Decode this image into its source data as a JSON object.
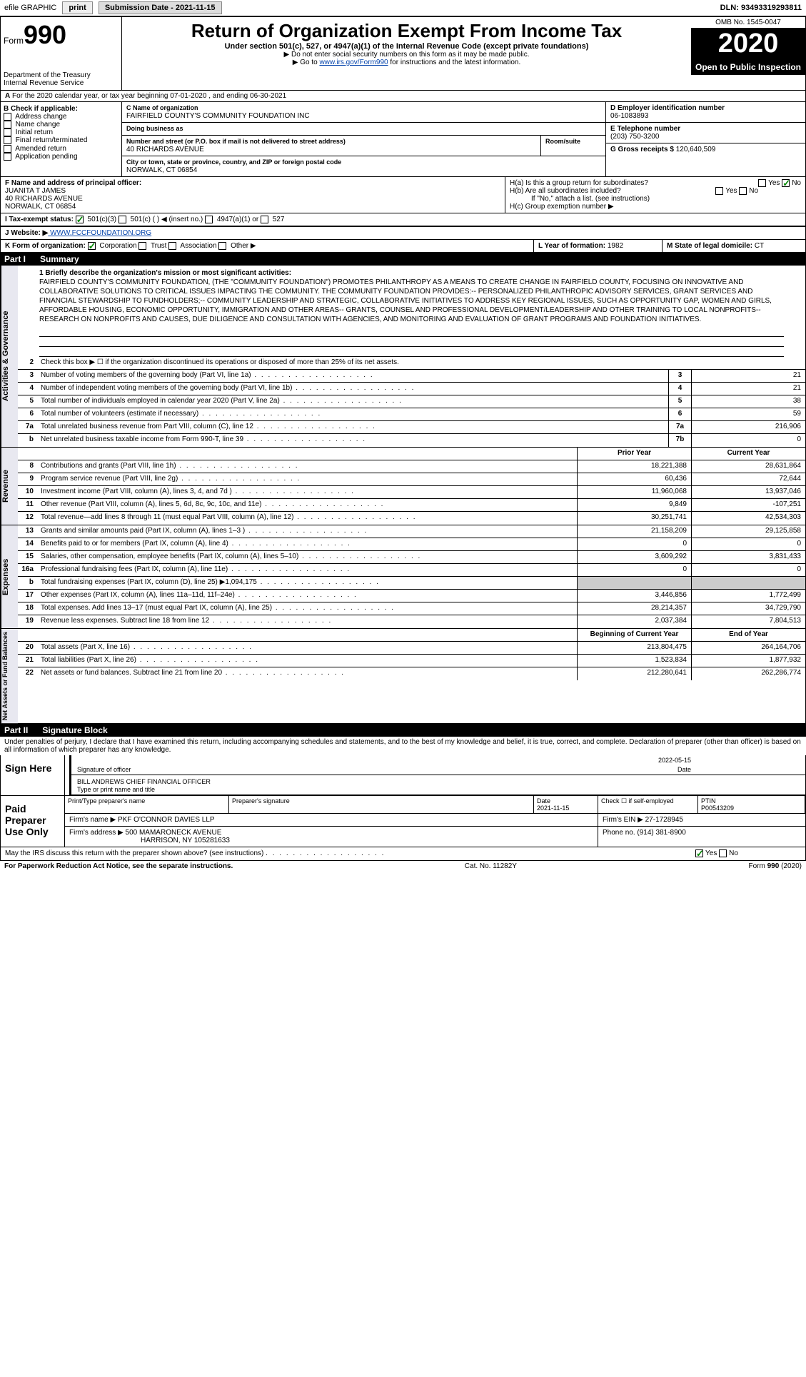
{
  "topbar": {
    "efile": "efile GRAPHIC",
    "print": "print",
    "sub_label": "Submission Date - 2021-11-15",
    "dln": "DLN: 93493319293811"
  },
  "header": {
    "form_prefix": "Form",
    "form_num": "990",
    "dept": "Department of the Treasury\nInternal Revenue Service",
    "title": "Return of Organization Exempt From Income Tax",
    "subtitle": "Under section 501(c), 527, or 4947(a)(1) of the Internal Revenue Code (except private foundations)",
    "note1": "▶ Do not enter social security numbers on this form as it may be made public.",
    "note2_pre": "▶ Go to ",
    "note2_link": "www.irs.gov/Form990",
    "note2_post": " for instructions and the latest information.",
    "omb": "OMB No. 1545-0047",
    "year": "2020",
    "open_public": "Open to Public Inspection"
  },
  "period": "For the 2020 calendar year, or tax year beginning 07-01-2020    , and ending 06-30-2021",
  "boxB": {
    "label": "B Check if applicable:",
    "items": [
      "Address change",
      "Name change",
      "Initial return",
      "Final return/terminated",
      "Amended return",
      "Application pending"
    ]
  },
  "boxC": {
    "label": "C Name of organization",
    "name": "FAIRFIELD COUNTY'S COMMUNITY FOUNDATION INC",
    "dba_label": "Doing business as",
    "street_label": "Number and street (or P.O. box if mail is not delivered to street address)",
    "room_label": "Room/suite",
    "street": "40 RICHARDS AVENUE",
    "city_label": "City or town, state or province, country, and ZIP or foreign postal code",
    "city": "NORWALK, CT  06854"
  },
  "boxD": {
    "label": "D Employer identification number",
    "val": "06-1083893"
  },
  "boxE": {
    "label": "E Telephone number",
    "val": "(203) 750-3200"
  },
  "boxG": {
    "label": "G Gross receipts $",
    "val": "120,640,509"
  },
  "boxF": {
    "label": "F  Name and address of principal officer:",
    "name": "JUANITA T JAMES",
    "street": "40 RICHARDS AVENUE",
    "city": "NORWALK, CT  06854"
  },
  "boxH": {
    "a": "H(a)  Is this a group return for subordinates?",
    "b": "H(b)  Are all subordinates included?",
    "b_note": "If \"No,\" attach a list. (see instructions)",
    "c": "H(c)  Group exemption number ▶",
    "yes": "Yes",
    "no": "No"
  },
  "taxexempt": {
    "label": "I   Tax-exempt status:",
    "opts": [
      "501(c)(3)",
      "501(c) (   ) ◀ (insert no.)",
      "4947(a)(1) or",
      "527"
    ]
  },
  "website": {
    "label": "J   Website: ▶",
    "val": " WWW.FCCFOUNDATION.ORG"
  },
  "boxK": {
    "label": "K Form of organization:",
    "opts": [
      "Corporation",
      "Trust",
      "Association",
      "Other ▶"
    ]
  },
  "boxL": {
    "label": "L Year of formation:",
    "val": "1982"
  },
  "boxM": {
    "label": "M State of legal domicile:",
    "val": "CT"
  },
  "part1": {
    "num": "Part I",
    "title": "Summary"
  },
  "mission_label": "1   Briefly describe the organization's mission or most significant activities:",
  "mission": "FAIRFIELD COUNTY'S COMMUNITY FOUNDATION, (THE \"COMMUNITY FOUNDATION\") PROMOTES PHILANTHROPY AS A MEANS TO CREATE CHANGE IN FAIRFIELD COUNTY, FOCUSING ON INNOVATIVE AND COLLABORATIVE SOLUTIONS TO CRITICAL ISSUES IMPACTING THE COMMUNITY. THE COMMUNITY FOUNDATION PROVIDES:-- PERSONALIZED PHILANTHROPIC ADVISORY SERVICES, GRANT SERVICES AND FINANCIAL STEWARDSHIP TO FUNDHOLDERS;-- COMMUNITY LEADERSHIP AND STRATEGIC, COLLABORATIVE INITIATIVES TO ADDRESS KEY REGIONAL ISSUES, SUCH AS OPPORTUNITY GAP, WOMEN AND GIRLS, AFFORDABLE HOUSING, ECONOMIC OPPORTUNITY, IMMIGRATION AND OTHER AREAS-- GRANTS, COUNSEL AND PROFESSIONAL DEVELOPMENT/LEADERSHIP AND OTHER TRAINING TO LOCAL NONPROFITS-- RESEARCH ON NONPROFITS AND CAUSES, DUE DILIGENCE AND CONSULTATION WITH AGENCIES, AND MONITORING AND EVALUATION OF GRANT PROGRAMS AND FOUNDATION INITIATIVES.",
  "line2": "Check this box ▶ ☐ if the organization discontinued its operations or disposed of more than 25% of its net assets.",
  "gov_lines": [
    {
      "n": "3",
      "t": "Number of voting members of the governing body (Part VI, line 1a)",
      "b": "3",
      "v": "21"
    },
    {
      "n": "4",
      "t": "Number of independent voting members of the governing body (Part VI, line 1b)",
      "b": "4",
      "v": "21"
    },
    {
      "n": "5",
      "t": "Total number of individuals employed in calendar year 2020 (Part V, line 2a)",
      "b": "5",
      "v": "38"
    },
    {
      "n": "6",
      "t": "Total number of volunteers (estimate if necessary)",
      "b": "6",
      "v": "59"
    },
    {
      "n": "7a",
      "t": "Total unrelated business revenue from Part VIII, column (C), line 12",
      "b": "7a",
      "v": "216,906"
    },
    {
      "n": "b",
      "t": "Net unrelated business taxable income from Form 990-T, line 39",
      "b": "7b",
      "v": "0"
    }
  ],
  "col_hdrs": {
    "py": "Prior Year",
    "cy": "Current Year"
  },
  "rev_lines": [
    {
      "n": "8",
      "t": "Contributions and grants (Part VIII, line 1h)",
      "py": "18,221,388",
      "cy": "28,631,864"
    },
    {
      "n": "9",
      "t": "Program service revenue (Part VIII, line 2g)",
      "py": "60,436",
      "cy": "72,644"
    },
    {
      "n": "10",
      "t": "Investment income (Part VIII, column (A), lines 3, 4, and 7d )",
      "py": "11,960,068",
      "cy": "13,937,046"
    },
    {
      "n": "11",
      "t": "Other revenue (Part VIII, column (A), lines 5, 6d, 8c, 9c, 10c, and 11e)",
      "py": "9,849",
      "cy": "-107,251"
    },
    {
      "n": "12",
      "t": "Total revenue—add lines 8 through 11 (must equal Part VIII, column (A), line 12)",
      "py": "30,251,741",
      "cy": "42,534,303"
    }
  ],
  "exp_lines": [
    {
      "n": "13",
      "t": "Grants and similar amounts paid (Part IX, column (A), lines 1–3 )",
      "py": "21,158,209",
      "cy": "29,125,858"
    },
    {
      "n": "14",
      "t": "Benefits paid to or for members (Part IX, column (A), line 4)",
      "py": "0",
      "cy": "0"
    },
    {
      "n": "15",
      "t": "Salaries, other compensation, employee benefits (Part IX, column (A), lines 5–10)",
      "py": "3,609,292",
      "cy": "3,831,433"
    },
    {
      "n": "16a",
      "t": "Professional fundraising fees (Part IX, column (A), line 11e)",
      "py": "0",
      "cy": "0"
    },
    {
      "n": "b",
      "t": "Total fundraising expenses (Part IX, column (D), line 25) ▶1,094,175",
      "py": "",
      "cy": "",
      "shaded": true
    },
    {
      "n": "17",
      "t": "Other expenses (Part IX, column (A), lines 11a–11d, 11f–24e)",
      "py": "3,446,856",
      "cy": "1,772,499"
    },
    {
      "n": "18",
      "t": "Total expenses. Add lines 13–17 (must equal Part IX, column (A), line 25)",
      "py": "28,214,357",
      "cy": "34,729,790"
    },
    {
      "n": "19",
      "t": "Revenue less expenses. Subtract line 18 from line 12",
      "py": "2,037,384",
      "cy": "7,804,513"
    }
  ],
  "col_hdrs2": {
    "by": "Beginning of Current Year",
    "ey": "End of Year"
  },
  "net_lines": [
    {
      "n": "20",
      "t": "Total assets (Part X, line 16)",
      "py": "213,804,475",
      "cy": "264,164,706"
    },
    {
      "n": "21",
      "t": "Total liabilities (Part X, line 26)",
      "py": "1,523,834",
      "cy": "1,877,932"
    },
    {
      "n": "22",
      "t": "Net assets or fund balances. Subtract line 21 from line 20",
      "py": "212,280,641",
      "cy": "262,286,774"
    }
  ],
  "part2": {
    "num": "Part II",
    "title": "Signature Block"
  },
  "penalty": "Under penalties of perjury, I declare that I have examined this return, including accompanying schedules and statements, and to the best of my knowledge and belief, it is true, correct, and complete. Declaration of preparer (other than officer) is based on all information of which preparer has any knowledge.",
  "sign": {
    "here": "Sign Here",
    "sig_label": "Signature of officer",
    "date_label": "Date",
    "date": "2022-05-15",
    "name": "BILL ANDREWS  CHIEF FINANCIAL OFFICER",
    "name_label": "Type or print name and title"
  },
  "paid": {
    "label": "Paid Preparer Use Only",
    "h1": "Print/Type preparer's name",
    "h2": "Preparer's signature",
    "h3": "Date",
    "h4": "Check ☐ if self-employed",
    "h5": "PTIN",
    "date": "2021-11-15",
    "ptin": "P00543209",
    "firm_label": "Firm's name     ▶",
    "firm": "PKF O'CONNOR DAVIES LLP",
    "ein_label": "Firm's EIN ▶",
    "ein": "27-1728945",
    "addr_label": "Firm's address ▶",
    "addr1": "500 MAMARONECK AVENUE",
    "addr2": "HARRISON, NY  105281633",
    "phone_label": "Phone no.",
    "phone": "(914) 381-8900"
  },
  "discuss": "May the IRS discuss this return with the preparer shown above? (see instructions)",
  "footer": {
    "left": "For Paperwork Reduction Act Notice, see the separate instructions.",
    "mid": "Cat. No. 11282Y",
    "right": "Form 990 (2020)"
  },
  "vert": {
    "gov": "Activities & Governance",
    "rev": "Revenue",
    "exp": "Expenses",
    "net": "Net Assets or Fund Balances"
  }
}
